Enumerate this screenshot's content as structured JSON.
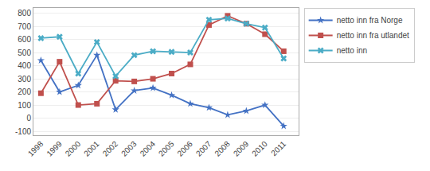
{
  "chart_data": {
    "type": "line",
    "x": [
      1998,
      1999,
      2000,
      2001,
      2002,
      2003,
      2004,
      2005,
      2006,
      2007,
      2008,
      2009,
      2010,
      2011
    ],
    "series": [
      {
        "name": "netto inn fra Norge",
        "color": "#4472C4",
        "marker": "star",
        "values": [
          440,
          200,
          250,
          480,
          65,
          210,
          230,
          175,
          110,
          80,
          25,
          55,
          100,
          -60
        ]
      },
      {
        "name": "netto inn fra utlandet",
        "color": "#C0504D",
        "marker": "square",
        "values": [
          190,
          430,
          100,
          110,
          285,
          280,
          300,
          340,
          410,
          710,
          780,
          720,
          640,
          510
        ]
      },
      {
        "name": "netto inn",
        "color": "#4BACC6",
        "marker": "x",
        "values": [
          610,
          620,
          340,
          580,
          320,
          480,
          510,
          505,
          500,
          750,
          760,
          720,
          690,
          455
        ]
      }
    ],
    "xlim": [
      1997.6,
      2011.8
    ],
    "xticks": [
      1998,
      1999,
      2000,
      2001,
      2002,
      2003,
      2004,
      2005,
      2006,
      2007,
      2008,
      2009,
      2010,
      2011
    ],
    "ylim": [
      -130,
      840
    ],
    "yticks": [
      -100,
      0,
      100,
      200,
      300,
      400,
      500,
      600,
      700,
      800
    ],
    "grid": true,
    "legend": "right"
  }
}
